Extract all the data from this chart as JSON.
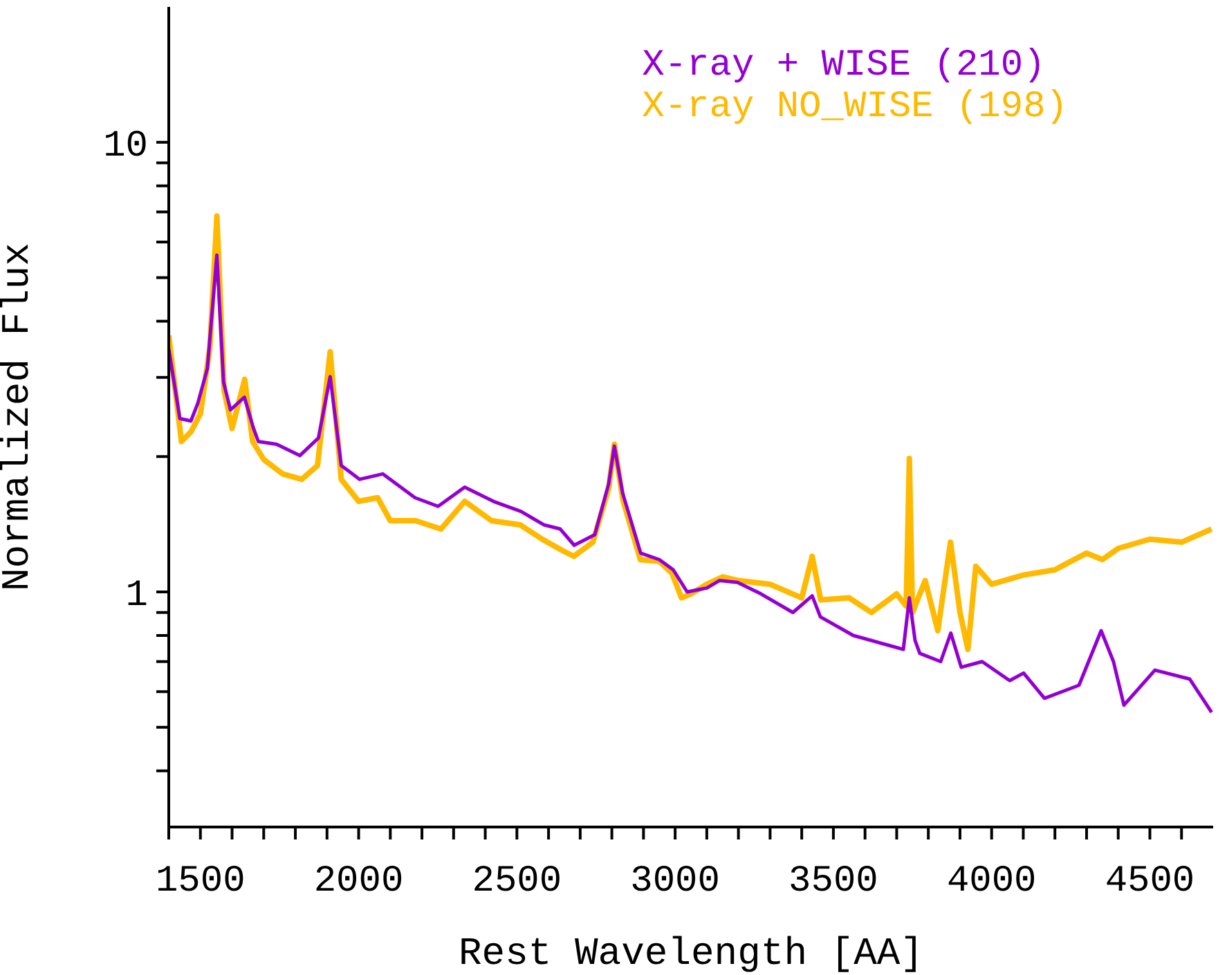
{
  "chart_data": {
    "type": "line",
    "xlabel": "Rest Wavelength [AA]",
    "ylabel": "Normalized Flux",
    "log": "y",
    "grid": false,
    "legend": "top right",
    "marker": "none",
    "line_style": "solid",
    "xlim": [
      1400,
      4700
    ],
    "ylim": [
      0.3,
      20
    ],
    "xticks": [
      {
        "value": 1400,
        "label": null
      },
      1500,
      {
        "value": 1600,
        "label": null
      },
      {
        "value": 1700,
        "label": null
      },
      {
        "value": 1800,
        "label": null
      },
      {
        "value": 1900,
        "label": null
      },
      2000,
      {
        "value": 2100,
        "label": null
      },
      {
        "value": 2200,
        "label": null
      },
      {
        "value": 2300,
        "label": null
      },
      {
        "value": 2400,
        "label": null
      },
      2500,
      {
        "value": 2600,
        "label": null
      },
      {
        "value": 2700,
        "label": null
      },
      {
        "value": 2800,
        "label": null
      },
      {
        "value": 2900,
        "label": null
      },
      3000,
      {
        "value": 3100,
        "label": null
      },
      {
        "value": 3200,
        "label": null
      },
      {
        "value": 3300,
        "label": null
      },
      {
        "value": 3400,
        "label": null
      },
      3500,
      {
        "value": 3600,
        "label": null
      },
      {
        "value": 3700,
        "label": null
      },
      {
        "value": 3800,
        "label": null
      },
      {
        "value": 3900,
        "label": null
      },
      4000,
      {
        "value": 4100,
        "label": null
      },
      {
        "value": 4200,
        "label": null
      },
      {
        "value": 4300,
        "label": null
      },
      {
        "value": 4400,
        "label": null
      },
      4500,
      {
        "value": 4600,
        "label": null
      }
    ],
    "yticks": [
      {
        "value": 0.4,
        "label": null
      },
      {
        "value": 0.5,
        "label": null
      },
      {
        "value": 0.6,
        "label": null
      },
      {
        "value": 0.7,
        "label": null
      },
      {
        "value": 0.8,
        "label": null
      },
      {
        "value": 0.9,
        "label": null
      },
      1,
      {
        "value": 2,
        "label": null
      },
      {
        "value": 3,
        "label": null
      },
      {
        "value": 4,
        "label": null
      },
      {
        "value": 5,
        "label": null
      },
      {
        "value": 6,
        "label": null
      },
      {
        "value": 7,
        "label": null
      },
      {
        "value": 8,
        "label": null
      },
      {
        "value": 9,
        "label": null
      },
      10
    ],
    "series": [
      {
        "name": "X-ray + WISE (210)",
        "color": "#9400d3",
        "x": [
          1400,
          1435,
          1470,
          1492,
          1522,
          1552,
          1573,
          1595,
          1639,
          1667,
          1683,
          1741,
          1814,
          1873,
          1910,
          1945,
          2003,
          2076,
          2178,
          2251,
          2335,
          2426,
          2513,
          2585,
          2637,
          2681,
          2746,
          2790,
          2808,
          2834,
          2891,
          2950,
          2994,
          3038,
          3100,
          3140,
          3197,
          3271,
          3372,
          3433,
          3459,
          3563,
          3677,
          3721,
          3740,
          3758,
          3773,
          3839,
          3871,
          3904,
          3970,
          4057,
          4101,
          4167,
          4276,
          4346,
          4385,
          4418,
          4516,
          4626,
          4695
        ],
        "values": [
          3.47,
          2.43,
          2.4,
          2.63,
          3.14,
          5.61,
          2.93,
          2.54,
          2.71,
          2.32,
          2.16,
          2.13,
          2.01,
          2.2,
          3.01,
          1.91,
          1.78,
          1.83,
          1.62,
          1.55,
          1.71,
          1.59,
          1.51,
          1.41,
          1.38,
          1.27,
          1.34,
          1.74,
          2.11,
          1.66,
          1.22,
          1.18,
          1.12,
          1.0,
          1.02,
          1.06,
          1.05,
          0.99,
          0.9,
          0.98,
          0.88,
          0.8,
          0.76,
          0.745,
          0.97,
          0.78,
          0.73,
          0.7,
          0.81,
          0.68,
          0.7,
          0.635,
          0.66,
          0.58,
          0.62,
          0.82,
          0.7,
          0.56,
          0.67,
          0.64,
          0.54
        ]
      },
      {
        "name": "X-ray NO_WISE (198)",
        "color": "#ffb900",
        "x": [
          1400,
          1440,
          1470,
          1500,
          1530,
          1552,
          1575,
          1600,
          1640,
          1665,
          1700,
          1760,
          1820,
          1870,
          1910,
          1945,
          2000,
          2060,
          2100,
          2180,
          2260,
          2335,
          2420,
          2510,
          2580,
          2640,
          2680,
          2740,
          2790,
          2808,
          2835,
          2890,
          2950,
          2990,
          3020,
          3050,
          3100,
          3150,
          3200,
          3300,
          3400,
          3433,
          3460,
          3550,
          3620,
          3700,
          3730,
          3740,
          3750,
          3790,
          3830,
          3870,
          3900,
          3925,
          3950,
          4000,
          4100,
          4200,
          4300,
          4350,
          4400,
          4500,
          4600,
          4695
        ],
        "values": [
          3.72,
          2.16,
          2.27,
          2.49,
          3.5,
          6.85,
          2.8,
          2.31,
          2.97,
          2.16,
          1.97,
          1.83,
          1.78,
          1.91,
          3.42,
          1.78,
          1.59,
          1.62,
          1.44,
          1.44,
          1.38,
          1.59,
          1.44,
          1.41,
          1.31,
          1.24,
          1.2,
          1.29,
          1.7,
          2.13,
          1.6,
          1.18,
          1.17,
          1.1,
          0.97,
          0.99,
          1.04,
          1.08,
          1.06,
          1.04,
          0.97,
          1.2,
          0.96,
          0.97,
          0.9,
          0.99,
          0.93,
          1.98,
          0.9,
          1.06,
          0.82,
          1.29,
          0.9,
          0.745,
          1.14,
          1.04,
          1.09,
          1.12,
          1.22,
          1.18,
          1.25,
          1.31,
          1.29,
          1.38
        ]
      }
    ]
  }
}
